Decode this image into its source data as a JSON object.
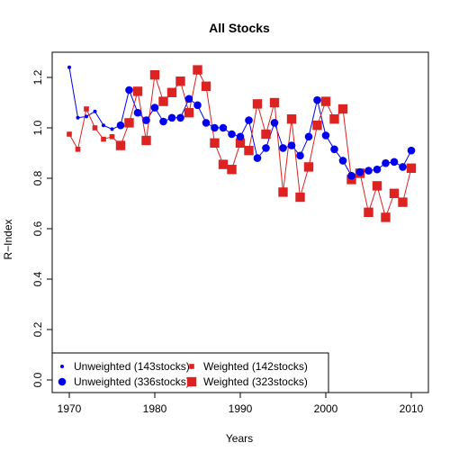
{
  "chart_data": {
    "type": "line",
    "title": "All Stocks",
    "xlabel": "Years",
    "ylabel": "R−Index",
    "xlim": [
      1968,
      2012
    ],
    "ylim": [
      -0.05,
      1.3
    ],
    "x_ticks": [
      1970,
      1980,
      1990,
      2000,
      2010
    ],
    "x_tick_labels": [
      "1970",
      "1980",
      "1990",
      "2000",
      "2010"
    ],
    "y_ticks": [
      0.0,
      0.2,
      0.4,
      0.6,
      0.8,
      1.0,
      1.2
    ],
    "y_tick_labels": [
      "0.0",
      "0.2",
      "0.4",
      "0.6",
      "0.8",
      "1.0",
      "1.2"
    ],
    "grid": false,
    "legend_position": "bottom-left",
    "series": [
      {
        "name": "Unweighted (143stocks)",
        "color": "#0000ee",
        "marker": "circle",
        "points": [
          [
            1970,
            1.24
          ],
          [
            1971,
            1.04
          ],
          [
            1972,
            1.045
          ],
          [
            1973,
            1.065
          ],
          [
            1974,
            1.01
          ],
          [
            1975,
            0.995
          ]
        ]
      },
      {
        "name": "Unweighted (336stocks)",
        "color": "#0000ee",
        "marker": "circle",
        "points": [
          [
            1976,
            1.01
          ],
          [
            1977,
            1.15
          ],
          [
            1978,
            1.06
          ],
          [
            1979,
            1.03
          ],
          [
            1980,
            1.08
          ],
          [
            1981,
            1.025
          ],
          [
            1982,
            1.04
          ],
          [
            1983,
            1.04
          ],
          [
            1984,
            1.115
          ],
          [
            1985,
            1.09
          ],
          [
            1986,
            1.02
          ],
          [
            1987,
            1.0
          ],
          [
            1988,
            1.0
          ],
          [
            1989,
            0.975
          ],
          [
            1990,
            0.965
          ],
          [
            1991,
            1.03
          ],
          [
            1992,
            0.88
          ],
          [
            1993,
            0.92
          ],
          [
            1994,
            1.02
          ],
          [
            1995,
            0.92
          ],
          [
            1996,
            0.93
          ],
          [
            1997,
            0.89
          ],
          [
            1998,
            0.965
          ],
          [
            1999,
            1.11
          ],
          [
            2000,
            0.97
          ],
          [
            2001,
            0.915
          ],
          [
            2002,
            0.87
          ],
          [
            2003,
            0.81
          ],
          [
            2004,
            0.825
          ],
          [
            2005,
            0.83
          ],
          [
            2006,
            0.835
          ],
          [
            2007,
            0.86
          ],
          [
            2008,
            0.865
          ],
          [
            2009,
            0.845
          ],
          [
            2010,
            0.91
          ]
        ]
      },
      {
        "name": "Weighted (142stocks)",
        "color": "#dd2222",
        "marker": "square",
        "points": [
          [
            1970,
            0.975
          ],
          [
            1971,
            0.915
          ],
          [
            1972,
            1.075
          ],
          [
            1973,
            1.0
          ],
          [
            1974,
            0.955
          ],
          [
            1975,
            0.965
          ]
        ]
      },
      {
        "name": "Weighted (323stocks)",
        "color": "#dd2222",
        "marker": "square",
        "points": [
          [
            1976,
            0.93
          ],
          [
            1977,
            1.02
          ],
          [
            1978,
            1.145
          ],
          [
            1979,
            0.95
          ],
          [
            1980,
            1.21
          ],
          [
            1981,
            1.105
          ],
          [
            1982,
            1.14
          ],
          [
            1983,
            1.185
          ],
          [
            1984,
            1.06
          ],
          [
            1985,
            1.23
          ],
          [
            1986,
            1.165
          ],
          [
            1987,
            0.94
          ],
          [
            1988,
            0.855
          ],
          [
            1989,
            0.835
          ],
          [
            1990,
            0.94
          ],
          [
            1991,
            0.91
          ],
          [
            1992,
            1.095
          ],
          [
            1993,
            0.975
          ],
          [
            1994,
            1.1
          ],
          [
            1995,
            0.745
          ],
          [
            1996,
            1.035
          ],
          [
            1997,
            0.725
          ],
          [
            1998,
            0.845
          ],
          [
            1999,
            1.01
          ],
          [
            2000,
            1.105
          ],
          [
            2001,
            1.035
          ],
          [
            2002,
            1.075
          ],
          [
            2003,
            0.795
          ],
          [
            2004,
            0.82
          ],
          [
            2005,
            0.665
          ],
          [
            2006,
            0.77
          ],
          [
            2007,
            0.645
          ],
          [
            2008,
            0.74
          ],
          [
            2009,
            0.705
          ],
          [
            2010,
            0.84
          ]
        ]
      }
    ],
    "legend": [
      {
        "label": "Unweighted (143stocks)",
        "color": "#0000ee",
        "marker": "circle",
        "size": "small"
      },
      {
        "label": "Unweighted (336stocks)",
        "color": "#0000ee",
        "marker": "circle",
        "size": "large"
      },
      {
        "label": "Weighted (142stocks)",
        "color": "#dd2222",
        "marker": "square",
        "size": "small"
      },
      {
        "label": "Weighted (323stocks)",
        "color": "#dd2222",
        "marker": "square",
        "size": "large"
      }
    ]
  }
}
